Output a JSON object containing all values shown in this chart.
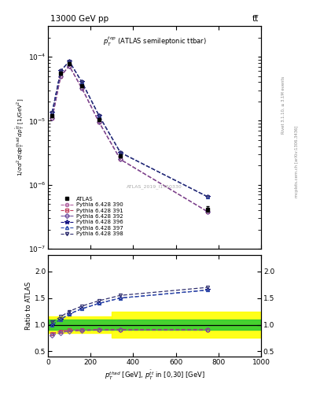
{
  "title_left": "13000 GeV pp",
  "title_right": "tt̅",
  "panel_label": "p_T^{top} (ATLAS semileptonic ttbar)",
  "ylabel_main": "1 / σ d²σ / d p_T^{thad} d p_T^{tbart} [1/GeV²]",
  "ylabel_ratio": "Ratio to ATLAS",
  "xlabel": "p_T^{thad} [GeV], p_T^{tbart} in [0,30] [GeV]",
  "watermark": "ATLAS_2019_I1750330",
  "right_label": "Rivet 3.1.10, ≥ 3.1M events",
  "right_label2": "mcplots.cern.ch [arXiv:1306.3436]",
  "x_data": [
    20,
    60,
    100,
    160,
    240,
    340,
    750
  ],
  "atlas_y": [
    1.2e-05,
    5.5e-05,
    7.8e-05,
    3.5e-05,
    1.05e-05,
    2.8e-06,
    4.2e-07
  ],
  "atlas_err_y": [
    5e-07,
    2.5e-06,
    3e-06,
    1.5e-06,
    5e-07,
    1.5e-07,
    4e-08
  ],
  "pythia390_y": [
    1.1e-05,
    5e-05,
    7.2e-05,
    3.2e-05,
    9.5e-06,
    2.5e-06,
    3.8e-07
  ],
  "pythia391_y": [
    1.1e-05,
    5e-05,
    7.2e-05,
    3.2e-05,
    9.5e-06,
    2.5e-06,
    3.8e-07
  ],
  "pythia392_y": [
    1.1e-05,
    5e-05,
    7.2e-05,
    3.2e-05,
    9.5e-06,
    2.5e-06,
    3.8e-07
  ],
  "pythia396_y": [
    1.35e-05,
    6e-05,
    8.5e-05,
    4e-05,
    1.2e-05,
    3.2e-06,
    6.5e-07
  ],
  "pythia397_y": [
    1.35e-05,
    6e-05,
    8.5e-05,
    4e-05,
    1.2e-05,
    3.2e-06,
    6.5e-07
  ],
  "pythia398_y": [
    1.35e-05,
    6e-05,
    8.5e-05,
    4e-05,
    1.2e-05,
    3.2e-06,
    6.5e-07
  ],
  "ratio390": [
    0.83,
    0.88,
    0.9,
    0.9,
    0.91,
    0.91,
    0.91
  ],
  "ratio391": [
    0.83,
    0.88,
    0.9,
    0.9,
    0.91,
    0.91,
    0.91
  ],
  "ratio392": [
    0.8,
    0.85,
    0.88,
    0.89,
    0.9,
    0.9,
    0.9
  ],
  "ratio396": [
    1.0,
    1.1,
    1.2,
    1.3,
    1.4,
    1.5,
    1.65
  ],
  "ratio397": [
    1.0,
    1.1,
    1.2,
    1.3,
    1.4,
    1.5,
    1.65
  ],
  "ratio398": [
    1.05,
    1.15,
    1.25,
    1.35,
    1.45,
    1.55,
    1.7
  ],
  "band_green_lo": 0.9,
  "band_green_hi": 1.1,
  "band_yellow_lo": 0.75,
  "band_yellow_hi": 1.25,
  "band_x_start": 300,
  "band_x_start2": 500,
  "color_390": "#b060a0",
  "color_391": "#c04060",
  "color_392": "#7050a0",
  "color_396": "#101080",
  "color_397": "#3050b0",
  "color_398": "#303070",
  "xlim": [
    0,
    1000
  ],
  "ylim_main": [
    1e-07,
    0.0003
  ],
  "ylim_ratio": [
    0.4,
    2.3
  ],
  "ratio_yticks": [
    0.5,
    1.0,
    1.5,
    2.0
  ]
}
